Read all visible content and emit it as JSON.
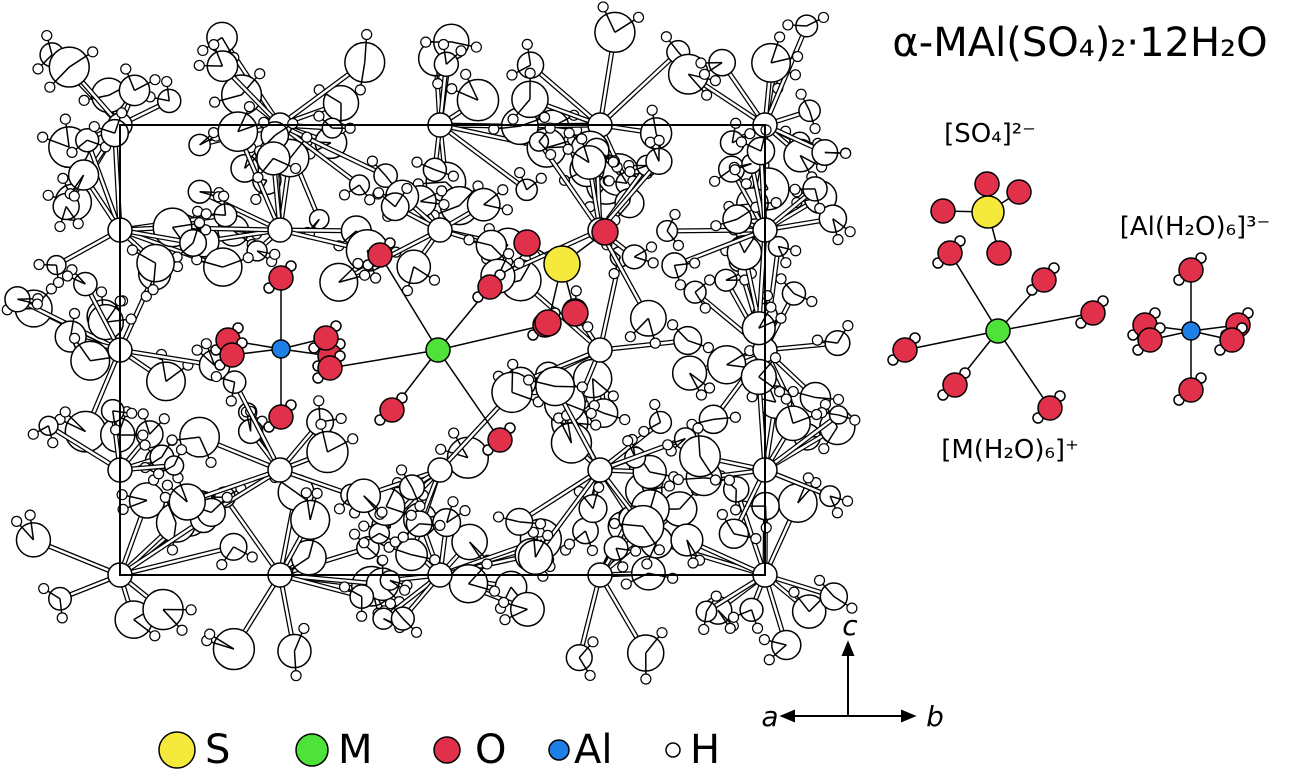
{
  "title": "α-MAl(SO₄)₂·12H₂O",
  "species": {
    "sulfate": "[SO₄]²⁻",
    "aluminum_complex": "[Al(H₂O)₆]³⁻",
    "metal_complex": "[M(H₂O)₆]⁺"
  },
  "axes": {
    "c": "c",
    "a": "a",
    "b": "b"
  },
  "legend": [
    {
      "label": "S",
      "color": "#f5ea3c"
    },
    {
      "label": "M",
      "color": "#4fe23a"
    },
    {
      "label": "O",
      "color": "#e0304a"
    },
    {
      "label": "Al",
      "color": "#1e7fe6"
    },
    {
      "label": "H",
      "color": "#ffffff"
    }
  ]
}
